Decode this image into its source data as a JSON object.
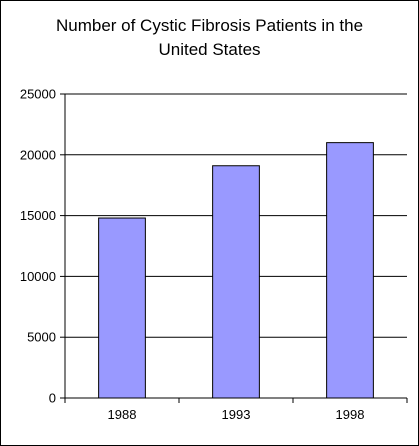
{
  "chart_data": {
    "type": "bar",
    "title_lines": [
      "Number of Cystic Fibrosis Patients in the",
      "United States"
    ],
    "categories": [
      "1988",
      "1993",
      "1998"
    ],
    "values": [
      14800,
      19100,
      21000
    ],
    "xlabel": "",
    "ylabel": "",
    "ylim": [
      0,
      25000
    ],
    "yticks": [
      "0",
      "5000",
      "10000",
      "15000",
      "20000",
      "25000"
    ],
    "grid": true,
    "legend": "none",
    "bar_color": "#9999ff",
    "bar_border_color": "#000000"
  }
}
